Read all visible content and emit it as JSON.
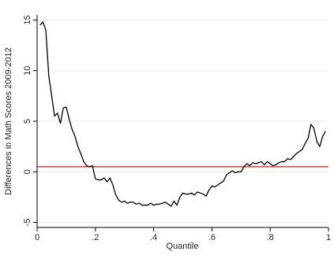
{
  "chart_data": {
    "type": "line",
    "title": "",
    "xlabel": "Quantile",
    "ylabel": "Differences in Math Scores 2009-2012",
    "xlim": [
      0,
      1
    ],
    "ylim": [
      -5.5,
      15.5
    ],
    "x_ticks": [
      0,
      0.2,
      0.4,
      0.6,
      0.8,
      1
    ],
    "x_tick_labels": [
      "0",
      ".2",
      ".4",
      ".6",
      ".8",
      "1"
    ],
    "y_ticks": [
      -5,
      0,
      5,
      10,
      15
    ],
    "y_tick_labels": [
      "-5",
      "0",
      "5",
      "10",
      "15"
    ],
    "grid": true,
    "legend": "none",
    "reference_line": {
      "y": 0.5,
      "color": "#e0141b"
    },
    "series": [
      {
        "color": "#000000",
        "x": [
          0.01,
          0.02,
          0.03,
          0.04,
          0.05,
          0.06,
          0.07,
          0.08,
          0.09,
          0.1,
          0.11,
          0.12,
          0.13,
          0.14,
          0.15,
          0.16,
          0.17,
          0.18,
          0.19,
          0.2,
          0.21,
          0.22,
          0.23,
          0.24,
          0.25,
          0.26,
          0.27,
          0.28,
          0.29,
          0.3,
          0.31,
          0.32,
          0.33,
          0.34,
          0.35,
          0.36,
          0.37,
          0.38,
          0.39,
          0.4,
          0.41,
          0.42,
          0.43,
          0.44,
          0.45,
          0.46,
          0.47,
          0.48,
          0.49,
          0.5,
          0.51,
          0.52,
          0.53,
          0.54,
          0.55,
          0.56,
          0.57,
          0.58,
          0.59,
          0.6,
          0.61,
          0.62,
          0.63,
          0.64,
          0.65,
          0.66,
          0.67,
          0.68,
          0.69,
          0.7,
          0.71,
          0.72,
          0.73,
          0.74,
          0.75,
          0.76,
          0.77,
          0.78,
          0.79,
          0.8,
          0.81,
          0.82,
          0.83,
          0.84,
          0.85,
          0.86,
          0.87,
          0.88,
          0.89,
          0.9,
          0.91,
          0.92,
          0.93,
          0.94,
          0.95,
          0.96,
          0.97,
          0.98,
          0.99
        ],
        "y": [
          14.5,
          14.8,
          14.0,
          9.5,
          7.5,
          5.5,
          5.8,
          4.8,
          6.3,
          6.4,
          5.2,
          4.2,
          3.5,
          2.5,
          1.8,
          1.0,
          0.6,
          0.5,
          0.6,
          -0.7,
          -0.8,
          -0.8,
          -0.6,
          -1.0,
          -0.6,
          -1.3,
          -2.3,
          -2.8,
          -3.0,
          -2.9,
          -3.1,
          -3.0,
          -3.0,
          -3.2,
          -3.1,
          -3.3,
          -3.3,
          -3.3,
          -3.1,
          -3.3,
          -3.2,
          -3.2,
          -3.1,
          -3.0,
          -3.2,
          -3.4,
          -2.9,
          -3.3,
          -2.5,
          -2.1,
          -2.2,
          -2.2,
          -2.1,
          -2.3,
          -2.0,
          -2.1,
          -2.2,
          -2.4,
          -1.8,
          -1.4,
          -1.5,
          -1.3,
          -1.1,
          -0.9,
          -0.3,
          -0.1,
          0.1,
          -0.1,
          0.0,
          0.0,
          0.5,
          0.8,
          0.6,
          0.9,
          0.8,
          0.9,
          1.0,
          0.7,
          1.0,
          0.8,
          0.6,
          0.7,
          0.9,
          1.0,
          1.0,
          1.3,
          1.2,
          1.5,
          1.8,
          2.0,
          2.2,
          2.8,
          3.3,
          4.7,
          4.3,
          3.0,
          2.5,
          3.5,
          4.0
        ]
      }
    ]
  }
}
